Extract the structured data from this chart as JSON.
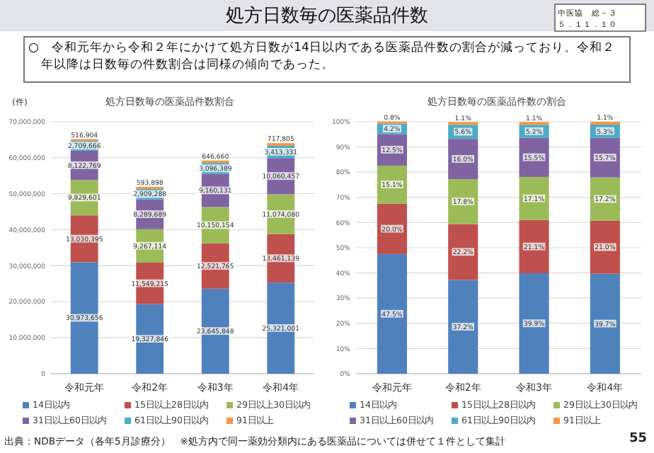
{
  "chart_data": [
    {
      "type": "other",
      "title": "処方日数毎の医薬品件数",
      "subtitle": "○　令和元年から令和２年にかけて処方日数が14日以内である医薬品件数の割合が減っており、令和２年以降は日数毎の件数割合は同様の傾向であった。",
      "annotations": [
        "中医協　総－３",
        "５．１１．１０",
        "出典：NDBデータ（各年5月診療分）　※処方内で同一薬効分類内にある医薬品については併せて１件として集計",
        "55"
      ]
    },
    {
      "type": "bar",
      "stacked": true,
      "title": "処方日数毎の医薬品件数割合",
      "ylabel": "(件)",
      "categories": [
        "令和元年",
        "令和2年",
        "令和3年",
        "令和4年"
      ],
      "ylim": [
        0,
        70000000
      ],
      "yticks": [
        {
          "value": 0,
          "label": "0"
        },
        {
          "value": 10000000,
          "label": "10,000,000"
        },
        {
          "value": 20000000,
          "label": "20,000,000"
        },
        {
          "value": 30000000,
          "label": "30,000,000"
        },
        {
          "value": 40000000,
          "label": "40,000,000"
        },
        {
          "value": 50000000,
          "label": "50,000,000"
        },
        {
          "value": 60000000,
          "label": "60,000,000"
        },
        {
          "value": 70000000,
          "label": "70,000,000"
        }
      ],
      "grid": "y",
      "legend": "bottom",
      "series": [
        {
          "name": "14日以内",
          "color": "#4f81bd",
          "values": [
            30973656,
            19327846,
            23645848,
            25321001
          ],
          "value_labels": [
            "30,973,656",
            "19,327,846",
            "23,645,848",
            "25,321,001"
          ]
        },
        {
          "name": "15日以上28日以内",
          "color": "#c0504d",
          "values": [
            13030395,
            11549215,
            12521765,
            13461139
          ],
          "value_labels": [
            "13,030,395",
            "11,549,215",
            "12,521,765",
            "13,461,139"
          ]
        },
        {
          "name": "29日以上30日以内",
          "color": "#9bbb59",
          "values": [
            9829601,
            9267114,
            10150154,
            11074080
          ],
          "value_labels": [
            "9,829,601",
            "9,267,114",
            "10,150,154",
            "11,074,080"
          ]
        },
        {
          "name": "31日以上60日以内",
          "color": "#8064a2",
          "values": [
            8122769,
            8289689,
            9160131,
            10060457
          ],
          "value_labels": [
            "8,122,769",
            "8,289,689",
            "9,160,131",
            "10,060,457"
          ]
        },
        {
          "name": "61日以上90日以内",
          "color": "#4bacc6",
          "values": [
            2709666,
            2909288,
            3096389,
            3413331
          ],
          "value_labels": [
            "2,709,666",
            "2,909,288",
            "3,096,389",
            "3,413,331"
          ]
        },
        {
          "name": "91日以上",
          "color": "#f79646",
          "values": [
            516904,
            593898,
            646660,
            717805
          ],
          "value_labels": [
            "516,904",
            "593,898",
            "646,660",
            "717,805"
          ]
        }
      ]
    },
    {
      "type": "bar",
      "stacked": true,
      "title": "処方日数毎の医薬品件数の割合",
      "categories": [
        "令和元年",
        "令和2年",
        "令和3年",
        "令和4年"
      ],
      "ylim": [
        0,
        100
      ],
      "yticks": [
        {
          "value": 0,
          "label": "0%"
        },
        {
          "value": 10,
          "label": "10%"
        },
        {
          "value": 20,
          "label": "20%"
        },
        {
          "value": 30,
          "label": "30%"
        },
        {
          "value": 40,
          "label": "40%"
        },
        {
          "value": 50,
          "label": "50%"
        },
        {
          "value": 60,
          "label": "60%"
        },
        {
          "value": 70,
          "label": "70%"
        },
        {
          "value": 80,
          "label": "80%"
        },
        {
          "value": 90,
          "label": "90%"
        },
        {
          "value": 100,
          "label": "100%"
        }
      ],
      "grid": "y",
      "legend": "bottom",
      "series": [
        {
          "name": "14日以内",
          "color": "#4f81bd",
          "values": [
            47.5,
            37.2,
            39.9,
            39.7
          ],
          "value_labels": [
            "47.5%",
            "37.2%",
            "39.9%",
            "39.7%"
          ]
        },
        {
          "name": "15日以上28日以内",
          "color": "#c0504d",
          "values": [
            20.0,
            22.2,
            21.1,
            21.0
          ],
          "value_labels": [
            "20.0%",
            "22.2%",
            "21.1%",
            "21.0%"
          ]
        },
        {
          "name": "29日以上30日以内",
          "color": "#9bbb59",
          "values": [
            15.1,
            17.8,
            17.1,
            17.2
          ],
          "value_labels": [
            "15.1%",
            "17.8%",
            "17.1%",
            "17.2%"
          ]
        },
        {
          "name": "31日以上60日以内",
          "color": "#8064a2",
          "values": [
            12.5,
            16.0,
            15.5,
            15.7
          ],
          "value_labels": [
            "12.5%",
            "16.0%",
            "15.5%",
            "15.7%"
          ]
        },
        {
          "name": "61日以上90日以内",
          "color": "#4bacc6",
          "values": [
            4.2,
            5.6,
            5.2,
            5.3
          ],
          "value_labels": [
            "4.2%",
            "5.6%",
            "5.2%",
            "5.3%"
          ]
        },
        {
          "name": "91日以上",
          "color": "#f79646",
          "values": [
            0.8,
            1.1,
            1.1,
            1.1
          ],
          "value_labels": [
            "0.8%",
            "1.1%",
            "1.1%",
            "1.1%"
          ]
        }
      ]
    }
  ]
}
